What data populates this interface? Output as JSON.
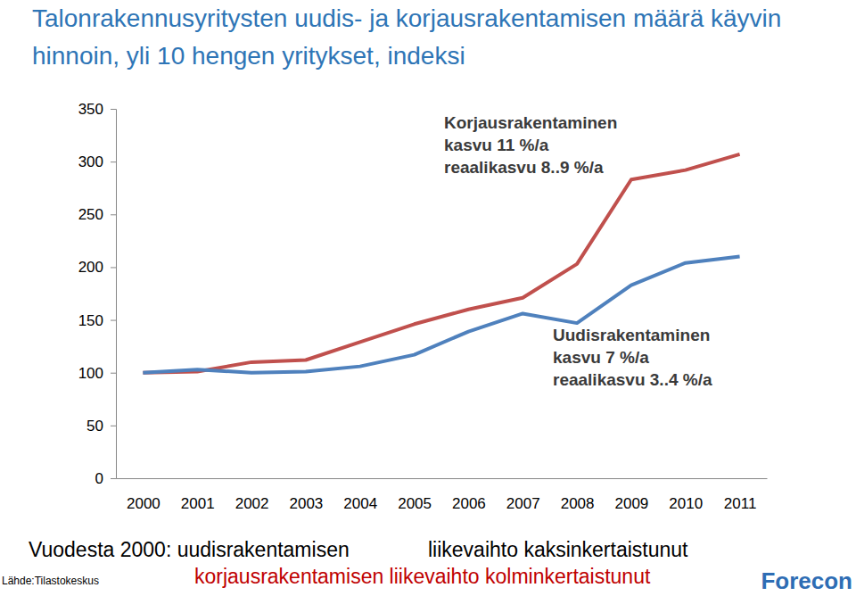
{
  "chart_data": {
    "type": "line",
    "title": "Talonrakennusyritysten uudis- ja korjausrakentamisen määrä käyvin hinnoin, yli 10 hengen yritykset, indeksi",
    "categories": [
      "2000",
      "2001",
      "2002",
      "2003",
      "2004",
      "2005",
      "2006",
      "2007",
      "2008",
      "2009",
      "2010",
      "2011"
    ],
    "series": [
      {
        "name": "Korjausrakentaminen",
        "color": "#c0504d",
        "values": [
          100,
          101,
          110,
          112,
          129,
          146,
          160,
          171,
          203,
          283,
          292,
          307
        ]
      },
      {
        "name": "Uudisrakentaminen",
        "color": "#4f81bd",
        "values": [
          100,
          103,
          100,
          101,
          106,
          117,
          139,
          156,
          147,
          183,
          204,
          210
        ]
      }
    ],
    "ylim": [
      0,
      350
    ],
    "yticks": [
      0,
      50,
      100,
      150,
      200,
      250,
      300,
      350
    ],
    "grid": false,
    "annotations": [
      "kasvu 11 %/a",
      "reaalikasvu 8..9 %/a",
      "kasvu 7 %/a",
      "reaalikasvu 3..4 %/a"
    ],
    "notes": [
      "Vuodesta 2000: uudisrakentamisen",
      "liikevaihto kaksinkertaistunut",
      "korjausrakentamisen liikevaihto kolminkertaistunut"
    ],
    "source": "Lähde:Tilastokeskus",
    "credit": "Forecon"
  }
}
